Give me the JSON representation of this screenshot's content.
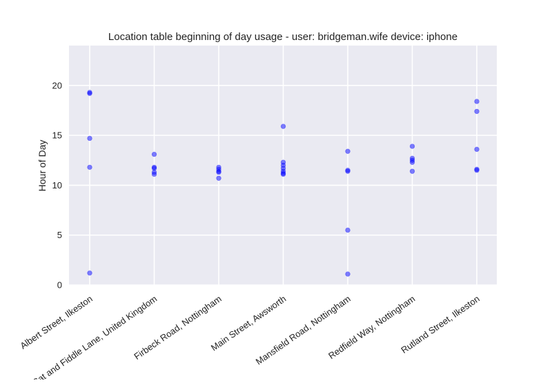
{
  "chart_data": {
    "type": "scatter",
    "title": "Location table beginning of day usage -  user: bridgeman.wife device: iphone",
    "xlabel": "",
    "ylabel": "Hour of Day",
    "categories": [
      "Albert Street, Ilkeston",
      "Cat and Fiddle Lane, United Kingdom",
      "Firbeck Road, Nottingham",
      "Main Street, Awsworth",
      "Mansfield Road, Nottingham",
      "Redfield Way, Nottingham",
      "Rutland Street, Ilkeston"
    ],
    "ylim": [
      0,
      24
    ],
    "yticks": [
      0,
      5,
      10,
      15,
      20
    ],
    "grid": true,
    "legend": "none",
    "point_color": "#0000ff",
    "point_alpha": 0.5,
    "background_color": "#eaeaf2",
    "grid_color": "#ffffff",
    "series": [
      {
        "points": [
          {
            "category": "Albert Street, Ilkeston",
            "y": 19.3
          },
          {
            "category": "Albert Street, Ilkeston",
            "y": 19.2
          },
          {
            "category": "Albert Street, Ilkeston",
            "y": 14.7
          },
          {
            "category": "Albert Street, Ilkeston",
            "y": 11.8
          },
          {
            "category": "Albert Street, Ilkeston",
            "y": 1.2
          },
          {
            "category": "Cat and Fiddle Lane, United Kingdom",
            "y": 13.1
          },
          {
            "category": "Cat and Fiddle Lane, United Kingdom",
            "y": 11.8
          },
          {
            "category": "Cat and Fiddle Lane, United Kingdom",
            "y": 11.7
          },
          {
            "category": "Cat and Fiddle Lane, United Kingdom",
            "y": 11.3
          },
          {
            "category": "Cat and Fiddle Lane, United Kingdom",
            "y": 11.1
          },
          {
            "category": "Firbeck Road, Nottingham",
            "y": 11.8
          },
          {
            "category": "Firbeck Road, Nottingham",
            "y": 11.6
          },
          {
            "category": "Firbeck Road, Nottingham",
            "y": 11.4
          },
          {
            "category": "Firbeck Road, Nottingham",
            "y": 11.3
          },
          {
            "category": "Firbeck Road, Nottingham",
            "y": 10.7
          },
          {
            "category": "Main Street, Awsworth",
            "y": 15.9
          },
          {
            "category": "Main Street, Awsworth",
            "y": 12.3
          },
          {
            "category": "Main Street, Awsworth",
            "y": 12.0
          },
          {
            "category": "Main Street, Awsworth",
            "y": 11.7
          },
          {
            "category": "Main Street, Awsworth",
            "y": 11.4
          },
          {
            "category": "Main Street, Awsworth",
            "y": 11.2
          },
          {
            "category": "Main Street, Awsworth",
            "y": 11.1
          },
          {
            "category": "Mansfield Road, Nottingham",
            "y": 13.4
          },
          {
            "category": "Mansfield Road, Nottingham",
            "y": 11.5
          },
          {
            "category": "Mansfield Road, Nottingham",
            "y": 11.4
          },
          {
            "category": "Mansfield Road, Nottingham",
            "y": 5.5
          },
          {
            "category": "Mansfield Road, Nottingham",
            "y": 1.1
          },
          {
            "category": "Redfield Way, Nottingham",
            "y": 13.9
          },
          {
            "category": "Redfield Way, Nottingham",
            "y": 12.7
          },
          {
            "category": "Redfield Way, Nottingham",
            "y": 12.5
          },
          {
            "category": "Redfield Way, Nottingham",
            "y": 12.3
          },
          {
            "category": "Redfield Way, Nottingham",
            "y": 11.4
          },
          {
            "category": "Rutland Street, Ilkeston",
            "y": 18.4
          },
          {
            "category": "Rutland Street, Ilkeston",
            "y": 17.4
          },
          {
            "category": "Rutland Street, Ilkeston",
            "y": 13.6
          },
          {
            "category": "Rutland Street, Ilkeston",
            "y": 11.6
          },
          {
            "category": "Rutland Street, Ilkeston",
            "y": 11.5
          }
        ]
      }
    ]
  }
}
